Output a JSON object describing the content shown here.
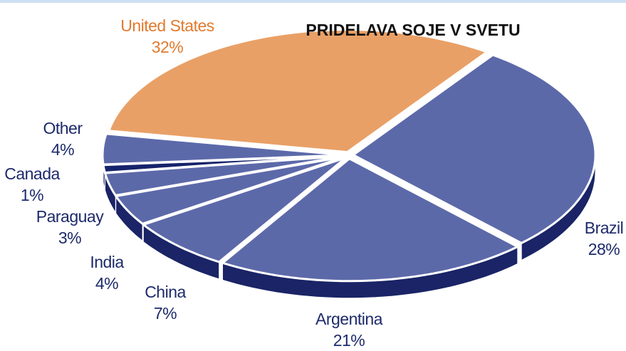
{
  "chart_data": {
    "type": "pie",
    "title": "PRIDELAVA SOJE V SVETU",
    "categories": [
      "United States",
      "Brazil",
      "Argentina",
      "China",
      "India",
      "Paraguay",
      "Canada",
      "Other"
    ],
    "values": [
      32,
      28,
      21,
      7,
      4,
      3,
      1,
      4
    ],
    "value_labels": [
      "32%",
      "28%",
      "21%",
      "7%",
      "4%",
      "3%",
      "1%",
      "4%"
    ],
    "colors": [
      "#e9a066",
      "#5c69a9",
      "#5c69a9",
      "#5c69a9",
      "#5c69a9",
      "#5c69a9",
      "#16236b",
      "#5c69a9"
    ],
    "label_colors": [
      "#e07a2e",
      "#1d2a6b",
      "#1d2a6b",
      "#1d2a6b",
      "#1d2a6b",
      "#1d2a6b",
      "#1d2a6b",
      "#1d2a6b"
    ],
    "side_color": "#1a2466"
  }
}
